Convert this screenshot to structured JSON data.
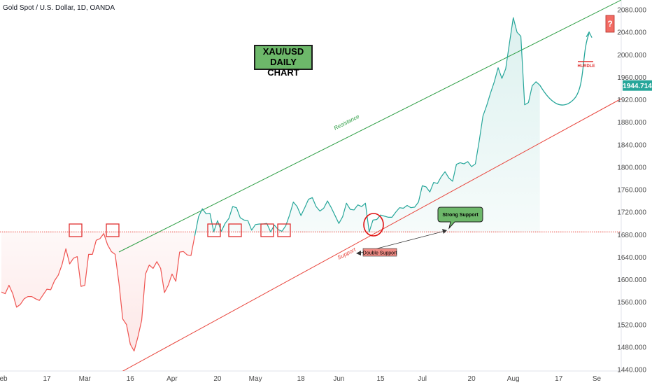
{
  "header": {
    "symbol": "Gold Spot / U.S. Dollar, 1D, OANDA"
  },
  "title_box": {
    "line1": "XAU/USD",
    "line2": "DAILY CHART"
  },
  "annotations": {
    "resistance": "Resistance",
    "support": "Support",
    "strong_support": "Strong Support",
    "double_support": "Double Support",
    "hurdle": "HURDLE",
    "question": "?"
  },
  "price_tag": {
    "value": "1944.714",
    "color": "#26a69a"
  },
  "colors": {
    "green_line": "#2e9e45",
    "red_line": "#e8453c",
    "teal": "#26a69a",
    "red_series": "#ef5350",
    "box_red": "#e03030"
  },
  "chart_data": {
    "type": "line",
    "title": "",
    "ylim": [
      1440,
      2090
    ],
    "y_ticks": [
      1440,
      1480,
      1520,
      1560,
      1600,
      1640,
      1680,
      1720,
      1760,
      1800,
      1840,
      1880,
      1920,
      1960,
      2000,
      2040,
      2080
    ],
    "x_ticks": [
      {
        "x": 0,
        "label": "Feb"
      },
      {
        "x": 12,
        "label": "17"
      },
      {
        "x": 22,
        "label": "Mar"
      },
      {
        "x": 34,
        "label": "16"
      },
      {
        "x": 45,
        "label": "Apr"
      },
      {
        "x": 57,
        "label": "20"
      },
      {
        "x": 67,
        "label": "May"
      },
      {
        "x": 79,
        "label": "18"
      },
      {
        "x": 89,
        "label": "Jun"
      },
      {
        "x": 100,
        "label": "15"
      },
      {
        "x": 111,
        "label": "Jul"
      },
      {
        "x": 124,
        "label": "20"
      },
      {
        "x": 135,
        "label": "Aug"
      },
      {
        "x": 147,
        "label": "17"
      },
      {
        "x": 157,
        "label": "Se"
      }
    ],
    "support_level": 1685,
    "series": [
      {
        "color": "#ef5350",
        "points": [
          [
            0,
            1578
          ],
          [
            1,
            1575
          ],
          [
            2,
            1590
          ],
          [
            3,
            1575
          ],
          [
            4,
            1551
          ],
          [
            5,
            1556
          ],
          [
            6,
            1566
          ],
          [
            7,
            1570
          ],
          [
            8,
            1570
          ],
          [
            9,
            1566
          ],
          [
            10,
            1563
          ],
          [
            11,
            1573
          ],
          [
            12,
            1583
          ],
          [
            13,
            1582
          ],
          [
            14,
            1598
          ],
          [
            15,
            1608
          ],
          [
            16,
            1627
          ],
          [
            17,
            1655
          ],
          [
            18,
            1628
          ],
          [
            19,
            1638
          ],
          [
            20,
            1641
          ],
          [
            21,
            1588
          ],
          [
            22,
            1590
          ],
          [
            23,
            1645
          ],
          [
            24,
            1645
          ],
          [
            25,
            1670
          ],
          [
            26,
            1673
          ],
          [
            27,
            1682
          ],
          [
            28,
            1662
          ],
          [
            29,
            1650
          ],
          [
            30,
            1645
          ],
          [
            31,
            1594
          ],
          [
            32,
            1530
          ],
          [
            33,
            1520
          ],
          [
            34,
            1485
          ],
          [
            35,
            1473
          ],
          [
            36,
            1498
          ],
          [
            37,
            1528
          ],
          [
            38,
            1610
          ],
          [
            39,
            1626
          ],
          [
            40,
            1620
          ],
          [
            41,
            1632
          ],
          [
            42,
            1620
          ],
          [
            43,
            1577
          ],
          [
            44,
            1590
          ],
          [
            45,
            1610
          ],
          [
            46,
            1597
          ],
          [
            47,
            1649
          ],
          [
            48,
            1650
          ],
          [
            49,
            1644
          ],
          [
            50,
            1643
          ],
          [
            51,
            1678
          ]
        ]
      },
      {
        "color": "#26a69a",
        "points": [
          [
            51,
            1678
          ],
          [
            52,
            1712
          ],
          [
            53,
            1726
          ],
          [
            54,
            1717
          ],
          [
            55,
            1718
          ],
          [
            56,
            1685
          ],
          [
            57,
            1705
          ],
          [
            58,
            1686
          ],
          [
            59,
            1700
          ],
          [
            60,
            1709
          ],
          [
            61,
            1730
          ],
          [
            62,
            1728
          ],
          [
            63,
            1710
          ],
          [
            64,
            1706
          ],
          [
            65,
            1705
          ],
          [
            66,
            1688
          ],
          [
            67,
            1698
          ],
          [
            68,
            1699
          ],
          [
            69,
            1699
          ],
          [
            70,
            1700
          ],
          [
            71,
            1685
          ],
          [
            72,
            1697
          ],
          [
            73,
            1689
          ],
          [
            74,
            1686
          ],
          [
            75,
            1696
          ],
          [
            76,
            1715
          ],
          [
            77,
            1738
          ],
          [
            78,
            1730
          ],
          [
            79,
            1714
          ],
          [
            80,
            1728
          ],
          [
            81,
            1743
          ],
          [
            82,
            1746
          ],
          [
            83,
            1730
          ],
          [
            84,
            1722
          ],
          [
            85,
            1727
          ],
          [
            86,
            1740
          ],
          [
            87,
            1728
          ],
          [
            88,
            1714
          ],
          [
            89,
            1700
          ],
          [
            90,
            1712
          ],
          [
            91,
            1736
          ],
          [
            92,
            1725
          ],
          [
            93,
            1724
          ],
          [
            94,
            1733
          ],
          [
            95,
            1730
          ],
          [
            96,
            1736
          ],
          [
            97,
            1685
          ],
          [
            98,
            1706
          ],
          [
            99,
            1707
          ],
          [
            100,
            1715
          ],
          [
            101,
            1713
          ],
          [
            102,
            1711
          ],
          [
            103,
            1711
          ],
          [
            104,
            1720
          ],
          [
            105,
            1728
          ],
          [
            106,
            1727
          ],
          [
            107,
            1732
          ],
          [
            108,
            1728
          ],
          [
            109,
            1729
          ],
          [
            110,
            1738
          ],
          [
            111,
            1767
          ],
          [
            112,
            1765
          ],
          [
            113,
            1756
          ],
          [
            114,
            1773
          ],
          [
            115,
            1771
          ],
          [
            116,
            1783
          ],
          [
            117,
            1792
          ],
          [
            118,
            1781
          ],
          [
            119,
            1775
          ],
          [
            120,
            1805
          ],
          [
            121,
            1808
          ],
          [
            122,
            1806
          ],
          [
            123,
            1810
          ],
          [
            124,
            1801
          ],
          [
            125,
            1806
          ],
          [
            126,
            1846
          ],
          [
            127,
            1891
          ],
          [
            128,
            1910
          ],
          [
            129,
            1932
          ],
          [
            130,
            1952
          ],
          [
            131,
            1977
          ],
          [
            132,
            1958
          ],
          [
            133,
            1975
          ],
          [
            134,
            2021
          ],
          [
            135,
            2066
          ],
          [
            136,
            2040
          ],
          [
            137,
            2033
          ],
          [
            138,
            1911
          ],
          [
            139,
            1915
          ],
          [
            140,
            1945
          ],
          [
            141,
            1952
          ],
          [
            142,
            1946
          ]
        ]
      }
    ],
    "projection": [
      [
        142,
        1946
      ],
      [
        145,
        1912
      ],
      [
        148,
        1900
      ],
      [
        151,
        1921
      ],
      [
        153,
        2005
      ],
      [
        155,
        2038
      ]
    ]
  }
}
